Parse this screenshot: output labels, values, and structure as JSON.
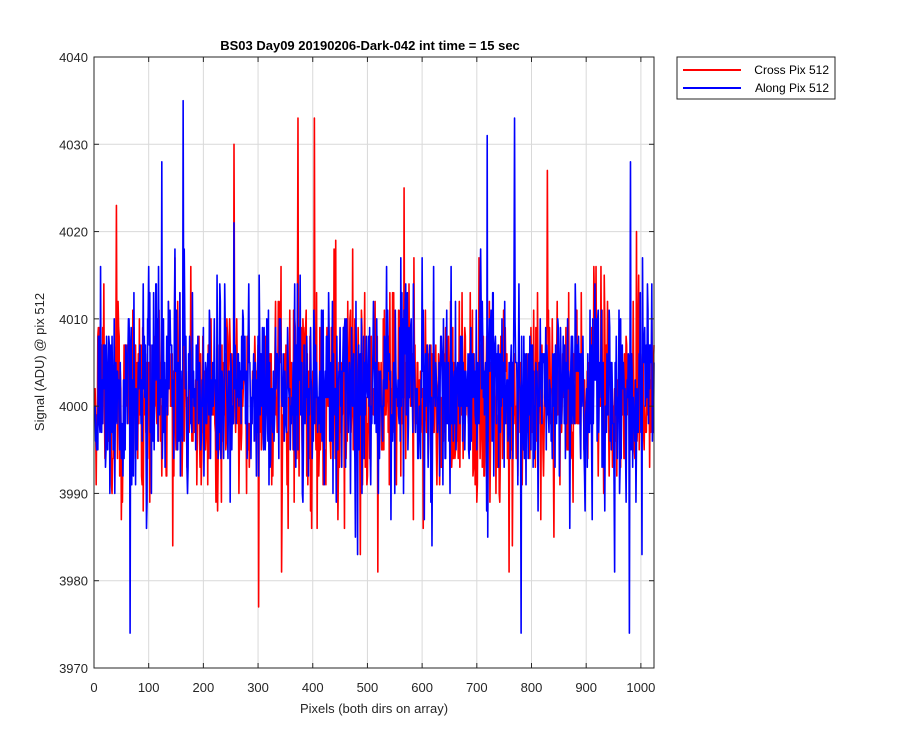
{
  "chart_data": {
    "type": "line",
    "title": "BS03 Day09 20190206-Dark-042 int time = 15 sec",
    "xlabel": "Pixels (both dirs on array)",
    "ylabel": "Signal (ADU) @ pix 512",
    "xlim": [
      0,
      1024
    ],
    "ylim": [
      3970,
      4040
    ],
    "xticks": [
      0,
      100,
      200,
      300,
      400,
      500,
      600,
      700,
      800,
      900,
      1000
    ],
    "yticks": [
      3970,
      3980,
      3990,
      4000,
      4010,
      4020,
      4030,
      4040
    ],
    "grid": true,
    "legend_position": "outside-top-right",
    "series": [
      {
        "name": "Cross Pix 512",
        "color": "#ff0000",
        "mean": 4001,
        "std": 6,
        "min": 3977,
        "max": 4033
      },
      {
        "name": "Along Pix 512",
        "color": "#0000ff",
        "mean": 4002,
        "std": 6,
        "min": 3974,
        "max": 4035
      }
    ],
    "peaks": {
      "Cross Pix 512": [
        [
          40,
          4023
        ],
        [
          255,
          4030
        ],
        [
          300,
          3977
        ],
        [
          372,
          4033
        ],
        [
          402,
          4033
        ],
        [
          566,
          4025
        ],
        [
          828,
          4027
        ]
      ],
      "Along Pix 512": [
        [
          65,
          3974
        ],
        [
          123,
          4028
        ],
        [
          162,
          4035
        ],
        [
          718,
          4031
        ],
        [
          768,
          4033
        ],
        [
          780,
          3974
        ],
        [
          978,
          3974
        ],
        [
          980,
          4028
        ]
      ]
    }
  }
}
